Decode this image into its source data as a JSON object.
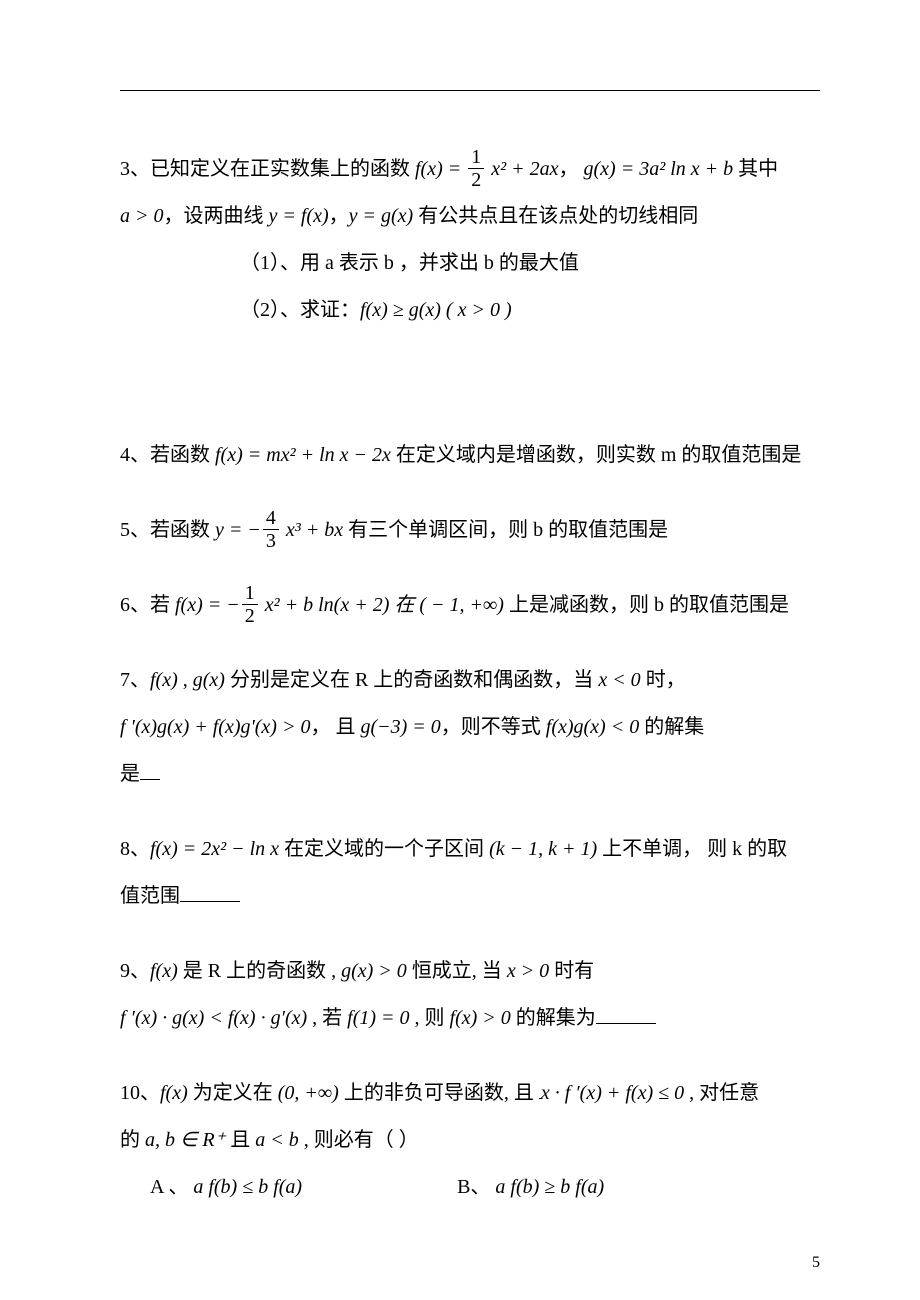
{
  "page_number": "5",
  "p3": {
    "lead": "3、已知定义在正实数集上的函数",
    "f": "f(x) = ",
    "f_tail": " x² + 2ax",
    "comma": "，",
    "g": "g(x) = 3a² ln x + b",
    "tail": " 其中",
    "l2a": "a > 0",
    "l2b": "，设两曲线 ",
    "l2c": "y = f(x)",
    "l2d": "，",
    "l2e": "y = g(x)",
    "l2f": " 有公共点且在该点处的切线相同",
    "sub1": "（1）、用 a 表示 b ，并求出 b 的最大值",
    "sub2a": "（2）、求证：",
    "sub2b": "f(x) ≥ g(x) ( x > 0 )"
  },
  "p4": {
    "lead": "4、若函数 ",
    "fn": "f(x) = mx² + ln x − 2x",
    "tail": " 在定义域内是增函数，则实数 m 的取值范围是"
  },
  "p5": {
    "lead": "5、若函数 ",
    "y": "y = −",
    "y_tail": " x³ + bx",
    "tail": "   有三个单调区间，则 b 的取值范围是"
  },
  "p6": {
    "lead": "6、若 ",
    "f1": "f(x) = −",
    "f2": " x² + b ln(x + 2) 在 ( − 1, +∞)",
    "tail": " 上是减函数，则 b 的取值范围是"
  },
  "p7": {
    "l1a": "7、",
    "l1b": "f(x)",
    "l1c": " , ",
    "l1d": "g(x)",
    "l1e": " 分别是定义在 R 上的奇函数和偶函数，当 ",
    "l1f": "x < 0",
    "l1g": " 时，",
    "l2a": "f '(x)g(x) + f(x)g'(x) > 0",
    "l2b": "， 且 ",
    "l2c": "g(−3) = 0",
    "l2d": "，则不等式 ",
    "l2e": "f(x)g(x) < 0",
    "l2f": " 的解集",
    "l3": "是"
  },
  "p8": {
    "l1a": "8、",
    "l1b": "f(x) = 2x² − ln x",
    "l1c": " 在定义域的一个子区间 ",
    "l1d": "(k − 1, k + 1)",
    "l1e": " 上不单调，  则 k 的取",
    "l2": "值范围"
  },
  "p9": {
    "l1a": "9、",
    "l1b": "f(x)",
    "l1c": " 是 R 上的奇函数 , ",
    "l1d": "g(x) > 0",
    "l1e": " 恒成立, 当 ",
    "l1f": "x > 0",
    "l1g": " 时有",
    "l2a": "f ′(x) · g(x) < f(x) · g′(x)",
    "l2b": " , 若 ",
    "l2c": "f(1) = 0",
    "l2d": " , 则 ",
    "l2e": "f(x) > 0",
    "l2f": " 的解集为"
  },
  "p10": {
    "l1a": "10、",
    "l1b": "f(x)",
    "l1c": " 为定义在 ",
    "l1d": "(0, +∞)",
    "l1e": " 上的非负可导函数, 且 ",
    "l1f": "x · f ′(x) + f(x) ≤ 0",
    "l1g": " , 对任意",
    "l2a": "的 ",
    "l2b": "a, b ∈ R⁺",
    "l2c": " 且 ",
    "l2d": "a < b",
    "l2e": " , 则必有（      ）",
    "optA_l": "A 、",
    "optA": "a f(b) ≤ b f(a)",
    "optB_l": "B、",
    "optB": "a f(b) ≥ b f(a)"
  }
}
